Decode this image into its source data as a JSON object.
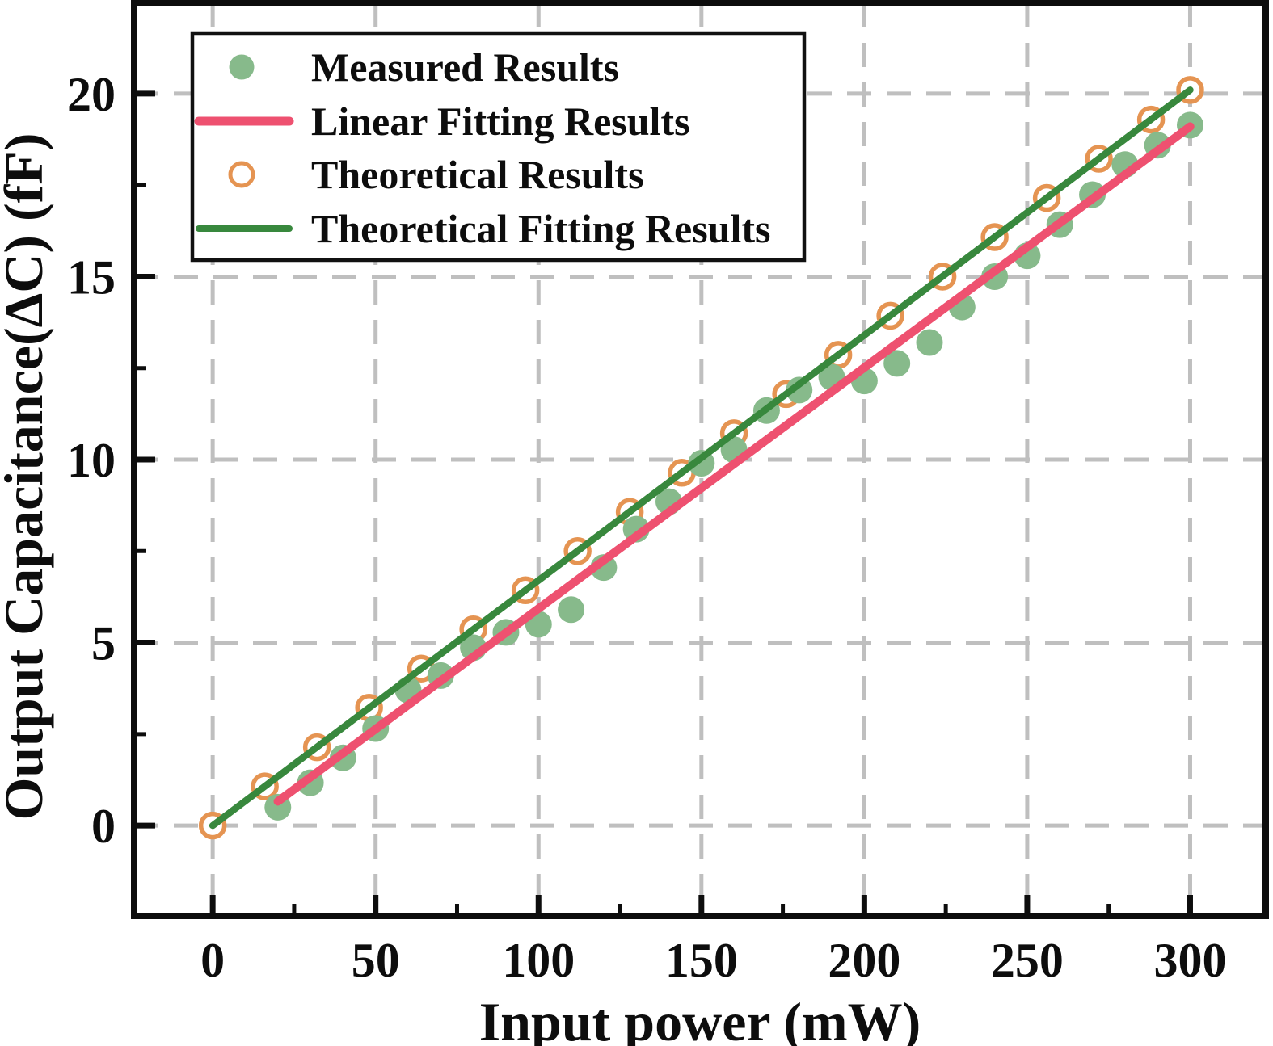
{
  "figure": {
    "description": "Scatter chart of output capacitance change versus input power with measured data, theoretical data and two linear fits"
  },
  "chart_data": {
    "type": "scatter",
    "title": "",
    "xlabel": "Input power (mW)",
    "ylabel": "Output Capacitance(ΔC) (fF)",
    "xlim": [
      -24.1,
      323.2
    ],
    "ylim": [
      -2.47,
      22.47
    ],
    "x_ticks": [
      0,
      50,
      100,
      150,
      200,
      250,
      300
    ],
    "x_minor_ticks": [
      25,
      75,
      125,
      175,
      225,
      275
    ],
    "y_ticks": [
      0,
      5,
      10,
      15,
      20
    ],
    "y_minor_ticks": [
      2.5,
      7.5,
      12.5,
      17.5
    ],
    "grid": true,
    "grid_style": "dashed",
    "grid_color": "#bfbfbf",
    "axis_color": "#0d0d0d",
    "legend_position": "upper-left",
    "series": [
      {
        "name": "Measured Results",
        "kind": "scatter",
        "marker": "filled-circle",
        "color": "#87ba8b",
        "points": [
          [
            20,
            0.5
          ],
          [
            30,
            1.17
          ],
          [
            40,
            1.85
          ],
          [
            50,
            2.65
          ],
          [
            60,
            3.7
          ],
          [
            70,
            4.1
          ],
          [
            80,
            4.86
          ],
          [
            90,
            5.28
          ],
          [
            100,
            5.5
          ],
          [
            110,
            5.9
          ],
          [
            120,
            7.05
          ],
          [
            130,
            8.1
          ],
          [
            140,
            8.85
          ],
          [
            150,
            9.9
          ],
          [
            160,
            10.27
          ],
          [
            170,
            11.34
          ],
          [
            180,
            11.9
          ],
          [
            190,
            12.25
          ],
          [
            200,
            12.15
          ],
          [
            210,
            12.63
          ],
          [
            220,
            13.2
          ],
          [
            230,
            14.17
          ],
          [
            240,
            15.0
          ],
          [
            250,
            15.57
          ],
          [
            260,
            16.42
          ],
          [
            270,
            17.24
          ],
          [
            280,
            18.06
          ],
          [
            290,
            18.59
          ],
          [
            300,
            19.14
          ]
        ]
      },
      {
        "name": "Linear Fitting Results",
        "kind": "line",
        "color": "#ee5170",
        "points": [
          [
            20,
            0.66
          ],
          [
            300,
            19.1
          ]
        ]
      },
      {
        "name": "Theoretical Results",
        "kind": "scatter",
        "marker": "open-circle",
        "color": "#e59452",
        "points": [
          [
            0,
            0
          ],
          [
            16,
            1.07
          ],
          [
            32,
            2.14
          ],
          [
            48,
            3.22
          ],
          [
            64,
            4.29
          ],
          [
            80,
            5.36
          ],
          [
            96,
            6.43
          ],
          [
            112,
            7.5
          ],
          [
            128,
            8.57
          ],
          [
            144,
            9.64
          ],
          [
            160,
            10.72
          ],
          [
            176,
            11.79
          ],
          [
            192,
            12.86
          ],
          [
            208,
            13.93
          ],
          [
            224,
            15.0
          ],
          [
            240,
            16.08
          ],
          [
            256,
            17.15
          ],
          [
            272,
            18.22
          ],
          [
            288,
            19.29
          ],
          [
            300,
            20.1
          ]
        ]
      },
      {
        "name": "Theoretical Fitting Results",
        "kind": "line",
        "color": "#38883d",
        "points": [
          [
            0,
            0
          ],
          [
            300,
            20.1
          ]
        ]
      }
    ]
  }
}
